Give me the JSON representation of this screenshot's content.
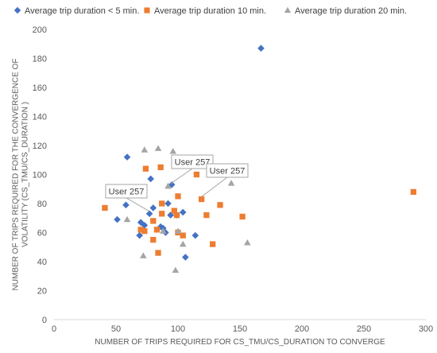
{
  "chart_data": {
    "type": "scatter",
    "title": "",
    "xlabel": "NUMBER OF TRIPS REQUIRED FOR CS_TMU/CS_DURATION TO CONVERGE",
    "ylabel": "NUMBER OF TRIPS REQUIRED FOR THE CONVERGENCE OF VOLATILITY (CS_TMU/CS_DURATION )",
    "xlim": [
      0,
      300
    ],
    "ylim": [
      0,
      200
    ],
    "xticks": [
      0,
      50,
      100,
      150,
      200,
      250,
      300
    ],
    "yticks": [
      0,
      20,
      40,
      60,
      80,
      100,
      120,
      140,
      160,
      180,
      200
    ],
    "grid": false,
    "legend_position": "top",
    "series": [
      {
        "name": "Average trip duration < 5 min.",
        "marker": "diamond",
        "color": "#4472C4",
        "points": [
          [
            167,
            187
          ],
          [
            59,
            112
          ],
          [
            78,
            97
          ],
          [
            95,
            93
          ],
          [
            58,
            79
          ],
          [
            51,
            69
          ],
          [
            77,
            73
          ],
          [
            80,
            77
          ],
          [
            92,
            80
          ],
          [
            70,
            67
          ],
          [
            73,
            65
          ],
          [
            69,
            58
          ],
          [
            86,
            64
          ],
          [
            88,
            63
          ],
          [
            90,
            60
          ],
          [
            94,
            72
          ],
          [
            99,
            72
          ],
          [
            104,
            74
          ],
          [
            114,
            58
          ],
          [
            106,
            43
          ]
        ]
      },
      {
        "name": "Average trip duration 10 min.",
        "marker": "square",
        "color": "#ED7D31",
        "points": [
          [
            290,
            88
          ],
          [
            41,
            77
          ],
          [
            74,
            104
          ],
          [
            86,
            105
          ],
          [
            115,
            100
          ],
          [
            100,
            85
          ],
          [
            119,
            83
          ],
          [
            87,
            80
          ],
          [
            97,
            75
          ],
          [
            87,
            73
          ],
          [
            99,
            72
          ],
          [
            123,
            72
          ],
          [
            134,
            79
          ],
          [
            152,
            71
          ],
          [
            80,
            68
          ],
          [
            70,
            62
          ],
          [
            73,
            61
          ],
          [
            83,
            62
          ],
          [
            100,
            60
          ],
          [
            104,
            58
          ],
          [
            80,
            55
          ],
          [
            84,
            46
          ],
          [
            128,
            52
          ]
        ]
      },
      {
        "name": "Average trip duration 20 min.",
        "marker": "triangle",
        "color": "#A5A5A5",
        "points": [
          [
            73,
            117
          ],
          [
            84,
            118
          ],
          [
            96,
            116
          ],
          [
            92,
            92
          ],
          [
            143,
            94
          ],
          [
            59,
            69
          ],
          [
            88,
            61
          ],
          [
            100,
            61
          ],
          [
            104,
            52
          ],
          [
            156,
            53
          ],
          [
            72,
            44
          ],
          [
            98,
            34
          ]
        ]
      }
    ],
    "annotations": [
      {
        "text": "User 257",
        "point": [
          77,
          73
        ]
      },
      {
        "text": "User 257",
        "point": [
          94,
          92
        ]
      },
      {
        "text": "User 257",
        "point": [
          119,
          83
        ]
      }
    ]
  }
}
